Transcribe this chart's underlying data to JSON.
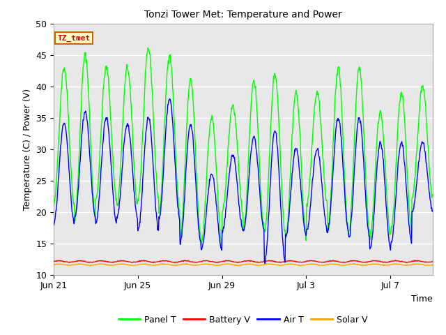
{
  "title": "Tonzi Tower Met: Temperature and Power",
  "xlabel": "Time",
  "ylabel": "Temperature (C) / Power (V)",
  "ylim": [
    10,
    50
  ],
  "tz_label": "TZ_tmet",
  "x_ticks_labels": [
    "Jun 21",
    "Jun 25",
    "Jun 29",
    "Jul 3",
    "Jul 7"
  ],
  "x_ticks_positions": [
    0,
    4,
    8,
    12,
    16
  ],
  "total_days": 18,
  "panel_color": "#00FF00",
  "battery_color": "#FF0000",
  "air_color": "#0000FF",
  "solar_color": "#FFA500",
  "bg_color": "#E8E8E8",
  "panel_peak": [
    43,
    45,
    43,
    43,
    46,
    45,
    41,
    35,
    37,
    41,
    42,
    39,
    39,
    43,
    43,
    36,
    39,
    40
  ],
  "panel_trough": [
    21,
    19,
    22,
    21,
    22,
    20,
    16,
    15,
    20,
    17,
    17,
    16,
    21,
    17,
    17,
    16,
    17,
    22
  ],
  "air_peak": [
    34,
    36,
    35,
    34,
    35,
    38,
    34,
    26,
    29,
    32,
    33,
    30,
    30,
    35,
    35,
    31,
    31,
    31
  ],
  "air_trough": [
    18,
    19,
    18,
    19,
    17,
    19,
    15,
    14,
    17,
    17,
    12,
    16,
    17,
    17,
    16,
    14,
    15,
    20
  ],
  "battery_level": 12.1,
  "solar_level": 11.6
}
